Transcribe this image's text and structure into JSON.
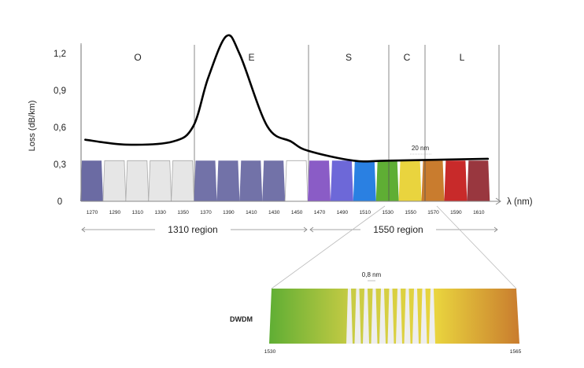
{
  "chart_data": {
    "type": "line",
    "ylabel": "Loss (dB/km)",
    "xlabel": "λ (nm)",
    "y_ticks": [
      "0",
      "0,3",
      "0,6",
      "0,9",
      "1,2"
    ],
    "y_tick_values": [
      0,
      0.3,
      0.6,
      0.9,
      1.2
    ],
    "ylim": [
      0,
      1.4
    ],
    "xlim": [
      1260,
      1620
    ],
    "bands": [
      {
        "name": "O",
        "from": 1260,
        "to": 1360
      },
      {
        "name": "E",
        "from": 1360,
        "to": 1460
      },
      {
        "name": "S",
        "from": 1460,
        "to": 1530
      },
      {
        "name": "C",
        "from": 1530,
        "to": 1565
      },
      {
        "name": "L",
        "from": 1565,
        "to": 1625
      }
    ],
    "loss_curve": {
      "x": [
        1264,
        1300,
        1341,
        1359,
        1372,
        1388,
        1400,
        1424,
        1445,
        1460,
        1500,
        1531,
        1618
      ],
      "y": [
        0.5,
        0.46,
        0.485,
        0.61,
        1.0,
        1.34,
        1.19,
        0.61,
        0.485,
        0.41,
        0.33,
        0.33,
        0.345
      ]
    },
    "cwdm_channels": [
      {
        "label": "1270",
        "value": 1270,
        "color": "#6b6ba3"
      },
      {
        "label": "1290",
        "value": 1290,
        "color": "#e6e6e6"
      },
      {
        "label": "1310",
        "value": 1310,
        "color": "#e6e6e6"
      },
      {
        "label": "1330",
        "value": 1330,
        "color": "#e6e6e6"
      },
      {
        "label": "1350",
        "value": 1350,
        "color": "#e6e6e6"
      },
      {
        "label": "1370",
        "value": 1370,
        "color": "#7272a8"
      },
      {
        "label": "1390",
        "value": 1390,
        "color": "#7272a8"
      },
      {
        "label": "1410",
        "value": 1410,
        "color": "#7272a8"
      },
      {
        "label": "1430",
        "value": 1430,
        "color": "#7272a8"
      },
      {
        "label": "1450",
        "value": 1450,
        "color": "#ffffff"
      },
      {
        "label": "1470",
        "value": 1470,
        "color": "#8a5cc6"
      },
      {
        "label": "1490",
        "value": 1490,
        "color": "#6d68d8"
      },
      {
        "label": "1510",
        "value": 1510,
        "color": "#2a80e2"
      },
      {
        "label": "1530",
        "value": 1530,
        "color": "#5fae34"
      },
      {
        "label": "1550",
        "value": 1550,
        "color": "#e9d43e"
      },
      {
        "label": "1570",
        "value": 1570,
        "color": "#c97c2e"
      },
      {
        "label": "1590",
        "value": 1590,
        "color": "#c82a2a"
      },
      {
        "label": "1610",
        "value": 1610,
        "color": "#99373f"
      }
    ],
    "channel_level": 0.33,
    "spacing_annotation": "20 nm",
    "regions": [
      {
        "label": "1310 region",
        "from": 1260,
        "to": 1460
      },
      {
        "label": "1550 region",
        "from": 1460,
        "to": 1625
      }
    ],
    "dwdm": {
      "label": "DWDM",
      "start_label": "1530",
      "end_label": "1565",
      "spacing_annotation": "0,8 nm",
      "gradient_colors": [
        "#5fae34",
        "#c9cc44",
        "#e9d43e",
        "#c97c2e"
      ],
      "channel_count": 10
    }
  }
}
